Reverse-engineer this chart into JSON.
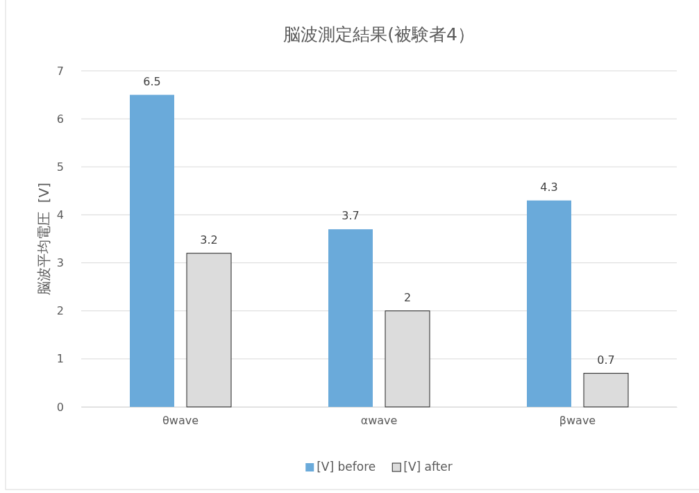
{
  "chart_data": {
    "type": "bar",
    "title": "脳波測定結果(被験者4）",
    "ylabel": "脳波平均電圧  [V]",
    "categories": [
      "θwave",
      "αwave",
      "βwave"
    ],
    "series": [
      {
        "name": "[V] before",
        "color": "#6aaada",
        "values": [
          6.5,
          3.7,
          4.3
        ]
      },
      {
        "name": "[V] after",
        "color": "#dcdcdc",
        "values": [
          3.2,
          2,
          0.7
        ]
      }
    ],
    "ylim": [
      0,
      7
    ],
    "yticks": [
      0,
      1,
      2,
      3,
      4,
      5,
      6,
      7
    ],
    "grid": "y",
    "legend": "bottom",
    "data_labels": true
  }
}
